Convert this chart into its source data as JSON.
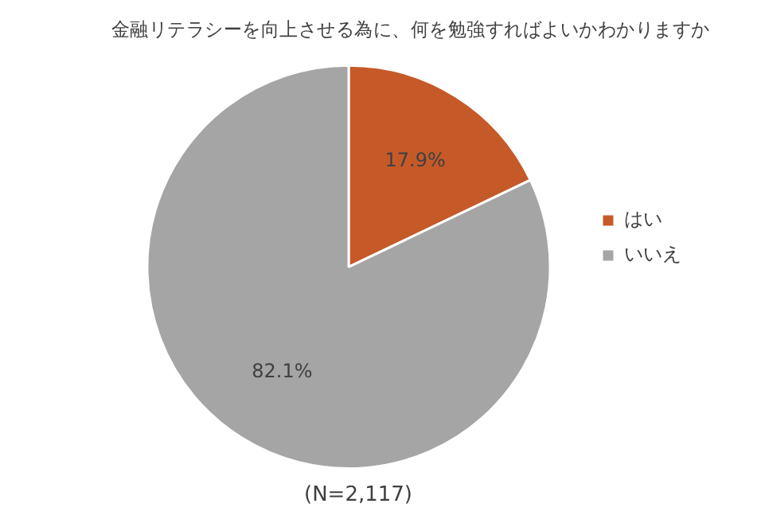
{
  "chart_data": {
    "type": "pie",
    "title": "金融リテラシーを向上させる為に、何を勉強すればよいかわかりますか",
    "categories": [
      "はい",
      "いいえ"
    ],
    "values": [
      17.9,
      82.1
    ],
    "colors": [
      "#c55a28",
      "#a5a5a5"
    ],
    "value_labels": [
      "17.9%",
      "82.1%"
    ],
    "legend": "right",
    "annotations": [
      "(N=2,117)"
    ]
  }
}
